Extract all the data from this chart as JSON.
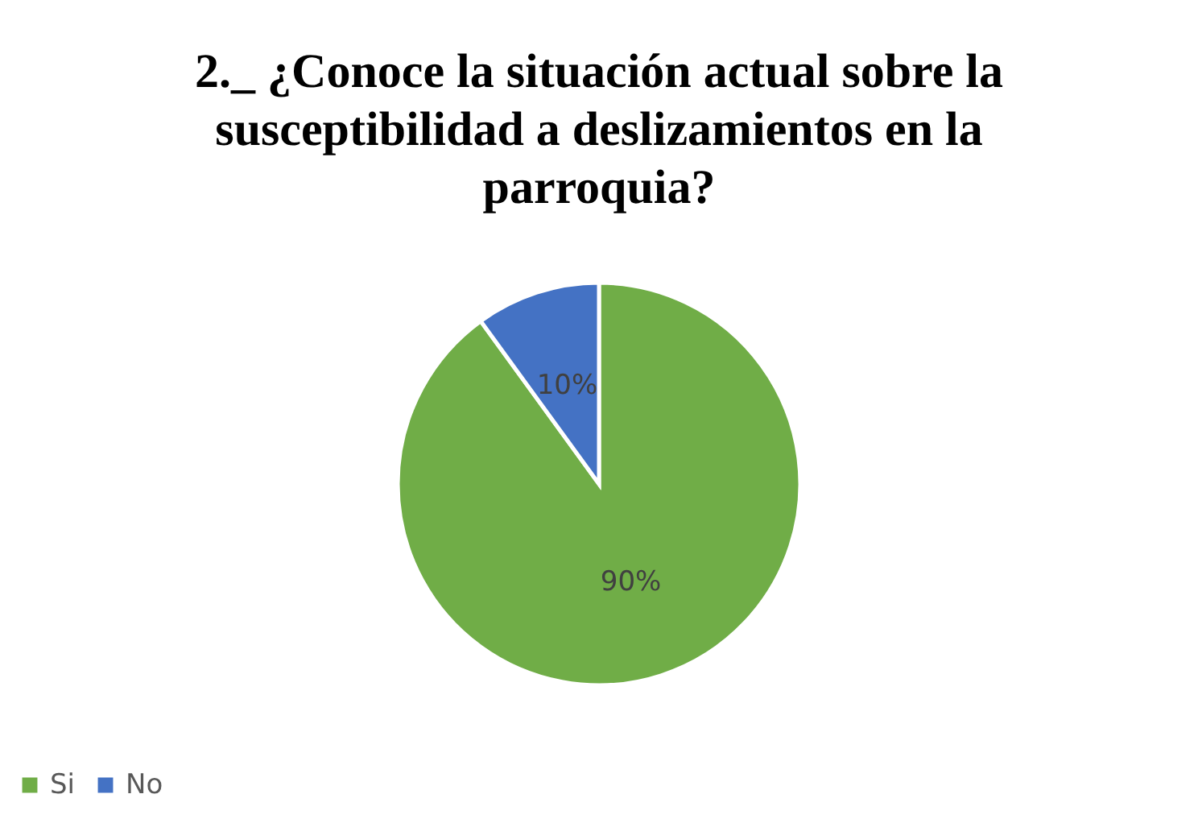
{
  "chart_data": {
    "type": "pie",
    "title": "2._ ¿Conoce la situación actual sobre la susceptibilidad a deslizamientos en la parroquia?",
    "categories": [
      "Si",
      "No"
    ],
    "values": [
      90,
      10
    ],
    "colors": [
      "#70ad47",
      "#4472c4"
    ],
    "value_labels": [
      "90%",
      "10%"
    ],
    "legend": "bottom"
  }
}
